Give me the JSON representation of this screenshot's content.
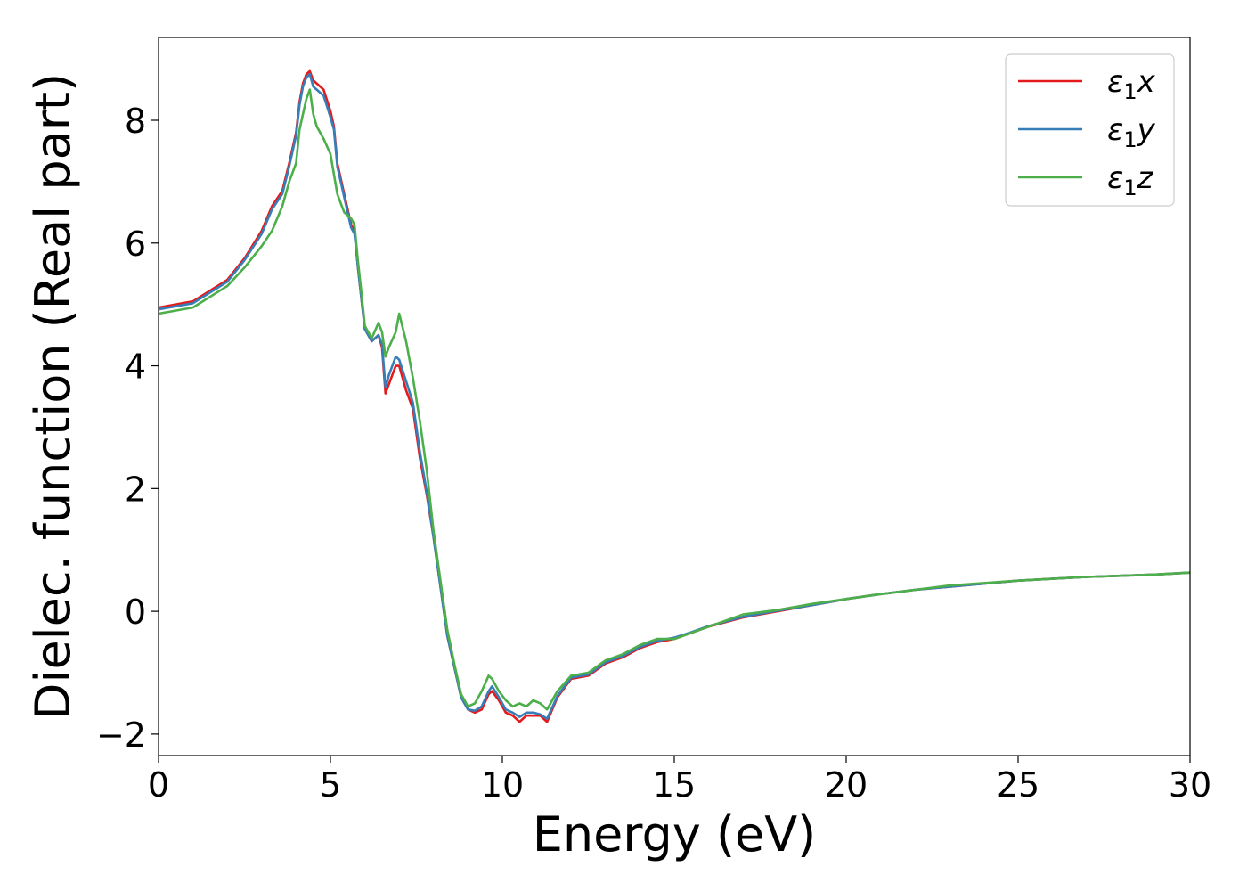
{
  "chart_data": {
    "type": "line",
    "title": "",
    "xlabel": "Energy (eV)",
    "ylabel": "Dielec. function (Real part)",
    "xlim": [
      0,
      30
    ],
    "ylim": [
      -2.35,
      9.35
    ],
    "x_ticks": [
      0,
      5,
      10,
      15,
      20,
      25,
      30
    ],
    "y_ticks": [
      -2,
      0,
      2,
      4,
      6,
      8
    ],
    "x_tick_labels": [
      "0",
      "5",
      "10",
      "15",
      "20",
      "25",
      "30"
    ],
    "y_tick_labels": [
      "−2",
      "0",
      "2",
      "4",
      "6",
      "8"
    ],
    "grid": false,
    "legend_position": "top-right",
    "series": [
      {
        "name": "ε₁x",
        "legend": {
          "base": "ε",
          "sub": "1",
          "comp": "x"
        },
        "color": "#e41a1c",
        "points": [
          [
            0,
            4.95
          ],
          [
            1,
            5.05
          ],
          [
            2,
            5.4
          ],
          [
            2.5,
            5.75
          ],
          [
            3,
            6.2
          ],
          [
            3.3,
            6.6
          ],
          [
            3.6,
            6.85
          ],
          [
            3.8,
            7.3
          ],
          [
            4.0,
            7.8
          ],
          [
            4.1,
            8.3
          ],
          [
            4.2,
            8.6
          ],
          [
            4.3,
            8.75
          ],
          [
            4.4,
            8.8
          ],
          [
            4.5,
            8.65
          ],
          [
            4.6,
            8.6
          ],
          [
            4.8,
            8.5
          ],
          [
            5.0,
            8.15
          ],
          [
            5.1,
            7.9
          ],
          [
            5.2,
            7.3
          ],
          [
            5.4,
            6.8
          ],
          [
            5.6,
            6.3
          ],
          [
            5.7,
            6.2
          ],
          [
            5.8,
            5.6
          ],
          [
            5.9,
            5.1
          ],
          [
            6.0,
            4.6
          ],
          [
            6.2,
            4.4
          ],
          [
            6.4,
            4.5
          ],
          [
            6.5,
            4.3
          ],
          [
            6.6,
            3.55
          ],
          [
            6.7,
            3.7
          ],
          [
            6.9,
            4.0
          ],
          [
            7.0,
            4.0
          ],
          [
            7.2,
            3.6
          ],
          [
            7.4,
            3.3
          ],
          [
            7.6,
            2.5
          ],
          [
            7.8,
            1.9
          ],
          [
            8.0,
            1.2
          ],
          [
            8.2,
            0.4
          ],
          [
            8.4,
            -0.4
          ],
          [
            8.6,
            -0.9
          ],
          [
            8.8,
            -1.4
          ],
          [
            9.0,
            -1.6
          ],
          [
            9.2,
            -1.65
          ],
          [
            9.4,
            -1.6
          ],
          [
            9.6,
            -1.35
          ],
          [
            9.7,
            -1.3
          ],
          [
            9.9,
            -1.45
          ],
          [
            10.1,
            -1.65
          ],
          [
            10.3,
            -1.7
          ],
          [
            10.5,
            -1.8
          ],
          [
            10.7,
            -1.7
          ],
          [
            10.9,
            -1.7
          ],
          [
            11.1,
            -1.7
          ],
          [
            11.3,
            -1.8
          ],
          [
            11.6,
            -1.4
          ],
          [
            12.0,
            -1.1
          ],
          [
            12.5,
            -1.05
          ],
          [
            13.0,
            -0.85
          ],
          [
            13.5,
            -0.75
          ],
          [
            14.0,
            -0.6
          ],
          [
            14.5,
            -0.5
          ],
          [
            15.0,
            -0.45
          ],
          [
            15.5,
            -0.35
          ],
          [
            16.0,
            -0.25
          ],
          [
            17.0,
            -0.1
          ],
          [
            18.0,
            0.0
          ],
          [
            19.0,
            0.1
          ],
          [
            20.0,
            0.2
          ],
          [
            21.0,
            0.28
          ],
          [
            22.0,
            0.35
          ],
          [
            23.0,
            0.4
          ],
          [
            24.0,
            0.45
          ],
          [
            25.0,
            0.5
          ],
          [
            26.0,
            0.53
          ],
          [
            27.0,
            0.56
          ],
          [
            28.0,
            0.58
          ],
          [
            29.0,
            0.6
          ],
          [
            30.0,
            0.63
          ]
        ]
      },
      {
        "name": "ε₁y",
        "legend": {
          "base": "ε",
          "sub": "1",
          "comp": "y"
        },
        "color": "#377eb8",
        "points": [
          [
            0,
            4.92
          ],
          [
            1,
            5.02
          ],
          [
            2,
            5.37
          ],
          [
            2.5,
            5.72
          ],
          [
            3,
            6.15
          ],
          [
            3.3,
            6.55
          ],
          [
            3.6,
            6.8
          ],
          [
            3.8,
            7.25
          ],
          [
            4.0,
            7.75
          ],
          [
            4.1,
            8.25
          ],
          [
            4.2,
            8.55
          ],
          [
            4.3,
            8.7
          ],
          [
            4.4,
            8.75
          ],
          [
            4.5,
            8.55
          ],
          [
            4.6,
            8.5
          ],
          [
            4.8,
            8.4
          ],
          [
            5.0,
            8.05
          ],
          [
            5.1,
            7.85
          ],
          [
            5.2,
            7.25
          ],
          [
            5.4,
            6.75
          ],
          [
            5.6,
            6.25
          ],
          [
            5.7,
            6.15
          ],
          [
            5.8,
            5.6
          ],
          [
            5.9,
            5.1
          ],
          [
            6.0,
            4.6
          ],
          [
            6.2,
            4.4
          ],
          [
            6.4,
            4.5
          ],
          [
            6.5,
            4.35
          ],
          [
            6.6,
            3.65
          ],
          [
            6.7,
            3.85
          ],
          [
            6.9,
            4.15
          ],
          [
            7.0,
            4.1
          ],
          [
            7.2,
            3.75
          ],
          [
            7.4,
            3.4
          ],
          [
            7.6,
            2.6
          ],
          [
            7.8,
            1.95
          ],
          [
            8.0,
            1.2
          ],
          [
            8.2,
            0.4
          ],
          [
            8.4,
            -0.4
          ],
          [
            8.6,
            -0.9
          ],
          [
            8.8,
            -1.4
          ],
          [
            9.0,
            -1.6
          ],
          [
            9.2,
            -1.62
          ],
          [
            9.4,
            -1.55
          ],
          [
            9.6,
            -1.3
          ],
          [
            9.7,
            -1.22
          ],
          [
            9.9,
            -1.4
          ],
          [
            10.1,
            -1.6
          ],
          [
            10.3,
            -1.65
          ],
          [
            10.5,
            -1.72
          ],
          [
            10.7,
            -1.65
          ],
          [
            10.9,
            -1.65
          ],
          [
            11.1,
            -1.68
          ],
          [
            11.3,
            -1.75
          ],
          [
            11.6,
            -1.38
          ],
          [
            12.0,
            -1.08
          ],
          [
            12.5,
            -1.03
          ],
          [
            13.0,
            -0.83
          ],
          [
            13.5,
            -0.73
          ],
          [
            14.0,
            -0.58
          ],
          [
            14.5,
            -0.48
          ],
          [
            15.0,
            -0.43
          ],
          [
            15.5,
            -0.34
          ],
          [
            16.0,
            -0.24
          ],
          [
            17.0,
            -0.09
          ],
          [
            18.0,
            0.01
          ],
          [
            19.0,
            0.1
          ],
          [
            20.0,
            0.2
          ],
          [
            21.0,
            0.28
          ],
          [
            22.0,
            0.35
          ],
          [
            23.0,
            0.4
          ],
          [
            24.0,
            0.45
          ],
          [
            25.0,
            0.5
          ],
          [
            26.0,
            0.53
          ],
          [
            27.0,
            0.56
          ],
          [
            28.0,
            0.58
          ],
          [
            29.0,
            0.6
          ],
          [
            30.0,
            0.63
          ]
        ]
      },
      {
        "name": "ε₁z",
        "legend": {
          "base": "ε",
          "sub": "1",
          "comp": "z"
        },
        "color": "#4daf4a",
        "points": [
          [
            0,
            4.85
          ],
          [
            1,
            4.95
          ],
          [
            2,
            5.3
          ],
          [
            2.5,
            5.6
          ],
          [
            3,
            5.95
          ],
          [
            3.3,
            6.2
          ],
          [
            3.6,
            6.6
          ],
          [
            3.8,
            7.0
          ],
          [
            4.0,
            7.3
          ],
          [
            4.1,
            7.85
          ],
          [
            4.2,
            8.1
          ],
          [
            4.3,
            8.35
          ],
          [
            4.4,
            8.5
          ],
          [
            4.5,
            8.1
          ],
          [
            4.6,
            7.9
          ],
          [
            4.8,
            7.7
          ],
          [
            5.0,
            7.45
          ],
          [
            5.2,
            6.8
          ],
          [
            5.4,
            6.5
          ],
          [
            5.6,
            6.4
          ],
          [
            5.7,
            6.3
          ],
          [
            5.8,
            5.7
          ],
          [
            5.9,
            5.2
          ],
          [
            6.0,
            4.65
          ],
          [
            6.2,
            4.45
          ],
          [
            6.4,
            4.7
          ],
          [
            6.5,
            4.55
          ],
          [
            6.6,
            4.15
          ],
          [
            6.7,
            4.3
          ],
          [
            6.9,
            4.55
          ],
          [
            7.0,
            4.85
          ],
          [
            7.2,
            4.4
          ],
          [
            7.4,
            3.8
          ],
          [
            7.6,
            3.1
          ],
          [
            7.8,
            2.3
          ],
          [
            8.0,
            1.3
          ],
          [
            8.2,
            0.5
          ],
          [
            8.4,
            -0.3
          ],
          [
            8.6,
            -0.85
          ],
          [
            8.8,
            -1.35
          ],
          [
            9.0,
            -1.55
          ],
          [
            9.2,
            -1.5
          ],
          [
            9.4,
            -1.3
          ],
          [
            9.6,
            -1.05
          ],
          [
            9.7,
            -1.1
          ],
          [
            9.9,
            -1.3
          ],
          [
            10.1,
            -1.45
          ],
          [
            10.3,
            -1.55
          ],
          [
            10.5,
            -1.5
          ],
          [
            10.7,
            -1.55
          ],
          [
            10.9,
            -1.45
          ],
          [
            11.1,
            -1.5
          ],
          [
            11.3,
            -1.6
          ],
          [
            11.6,
            -1.3
          ],
          [
            12.0,
            -1.05
          ],
          [
            12.5,
            -1.0
          ],
          [
            13.0,
            -0.8
          ],
          [
            13.5,
            -0.7
          ],
          [
            14.0,
            -0.55
          ],
          [
            14.5,
            -0.45
          ],
          [
            15.0,
            -0.45
          ],
          [
            15.5,
            -0.35
          ],
          [
            16.0,
            -0.25
          ],
          [
            17.0,
            -0.05
          ],
          [
            18.0,
            0.02
          ],
          [
            19.0,
            0.12
          ],
          [
            20.0,
            0.2
          ],
          [
            21.0,
            0.28
          ],
          [
            22.0,
            0.35
          ],
          [
            23.0,
            0.42
          ],
          [
            24.0,
            0.46
          ],
          [
            25.0,
            0.5
          ],
          [
            26.0,
            0.53
          ],
          [
            27.0,
            0.56
          ],
          [
            28.0,
            0.58
          ],
          [
            29.0,
            0.6
          ],
          [
            30.0,
            0.63
          ]
        ]
      }
    ]
  }
}
